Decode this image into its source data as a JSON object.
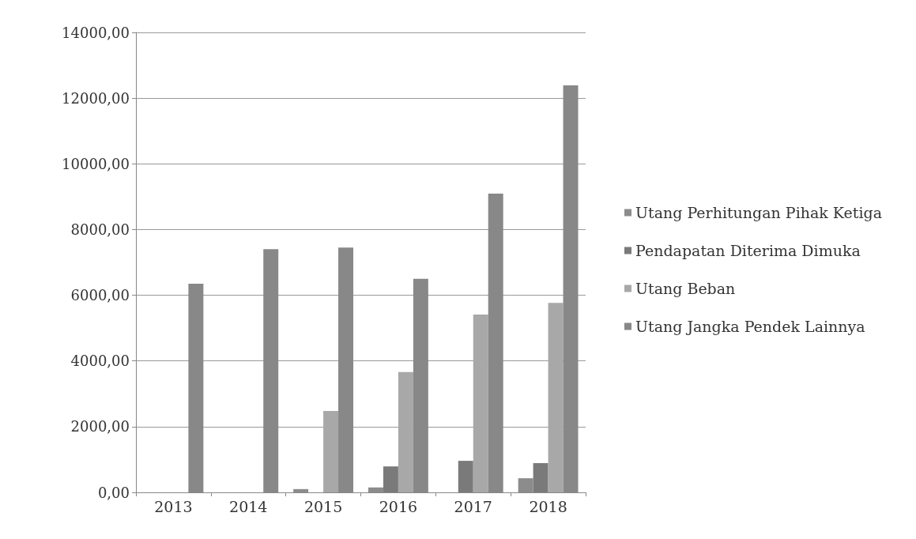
{
  "chart_data": {
    "type": "bar",
    "categories": [
      "2013",
      "2014",
      "2015",
      "2016",
      "2017",
      "2018"
    ],
    "series": [
      {
        "name": "Utang Perhitungan Pihak Ketiga",
        "color": "#8c8c8c",
        "values": [
          0,
          0,
          100,
          150,
          0,
          430
        ]
      },
      {
        "name": "Pendapatan Diterima Dimuka",
        "color": "#7a7a7a",
        "values": [
          0,
          0,
          0,
          790,
          960,
          890
        ]
      },
      {
        "name": "Utang Beban",
        "color": "#a8a8a8",
        "values": [
          0,
          0,
          2480,
          3660,
          5410,
          5770
        ]
      },
      {
        "name": "Utang Jangka Pendek Lainnya",
        "color": "#888888",
        "values": [
          6350,
          7400,
          7450,
          6500,
          9090,
          12390
        ]
      }
    ],
    "ylim": [
      0,
      14000
    ],
    "yticks": [
      {
        "value": 0,
        "label": "0,00"
      },
      {
        "value": 2000,
        "label": "2000,00"
      },
      {
        "value": 4000,
        "label": "4000,00"
      },
      {
        "value": 6000,
        "label": "6000,00"
      },
      {
        "value": 8000,
        "label": "8000,00"
      },
      {
        "value": 10000,
        "label": "10000,00"
      },
      {
        "value": 12000,
        "label": "12000,00"
      },
      {
        "value": 14000,
        "label": "14000,00"
      }
    ],
    "grid": "y",
    "legend": "right"
  }
}
